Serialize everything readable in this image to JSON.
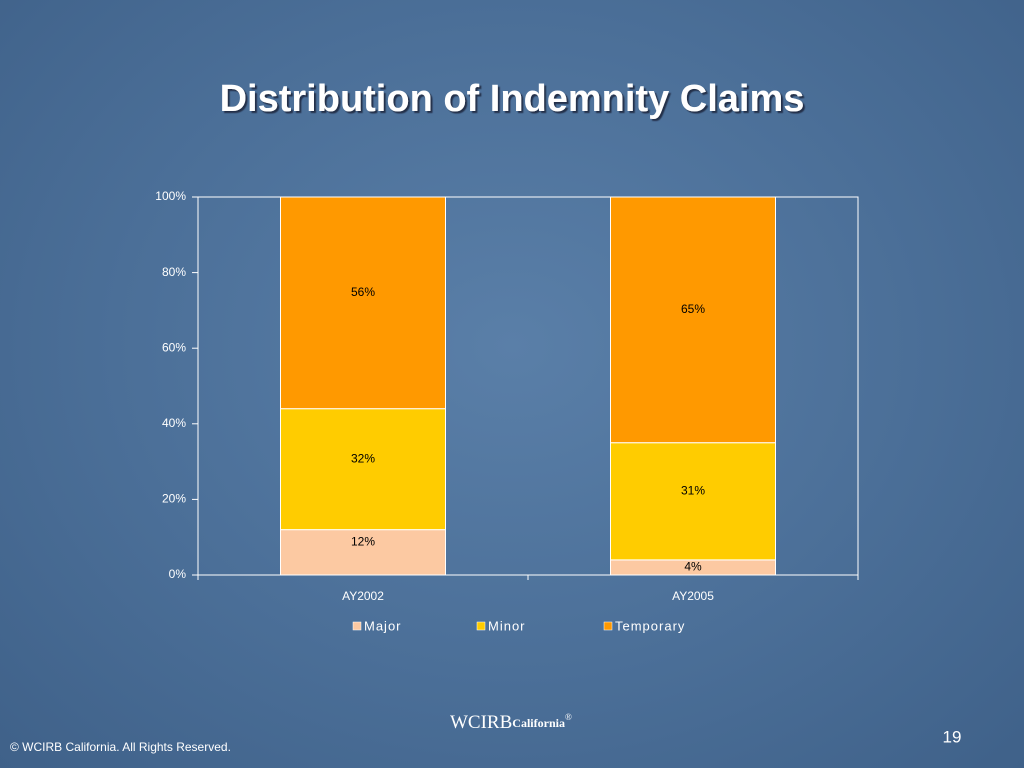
{
  "chart_data": {
    "type": "stacked_bar",
    "title": "Distribution of Indemnity Claims",
    "categories": [
      "AY2002",
      "AY2005"
    ],
    "series": [
      {
        "name": "Major",
        "color": "#fcc9a2",
        "values": [
          12,
          4
        ],
        "value_labels": [
          "12%",
          "4%"
        ]
      },
      {
        "name": "Minor",
        "color": "#ffcc00",
        "values": [
          32,
          31
        ],
        "value_labels": [
          "32%",
          "31%"
        ]
      },
      {
        "name": "Temporary",
        "color": "#ff9900",
        "values": [
          56,
          65
        ],
        "value_labels": [
          "56%",
          "65%"
        ]
      }
    ],
    "ylim": [
      0,
      100
    ],
    "yticks": [
      {
        "value": 0,
        "label": "0%"
      },
      {
        "value": 20,
        "label": "20%"
      },
      {
        "value": 40,
        "label": "40%"
      },
      {
        "value": 60,
        "label": "60%"
      },
      {
        "value": 80,
        "label": "80%"
      },
      {
        "value": 100,
        "label": "100%"
      }
    ],
    "grid": false,
    "legend": "bottom"
  },
  "slide": {
    "footer": "© WCIRB California.  All Rights Reserved.",
    "page_number": "19",
    "logo": {
      "name": "WCIRB",
      "sub": "California",
      "mark": "®"
    }
  }
}
